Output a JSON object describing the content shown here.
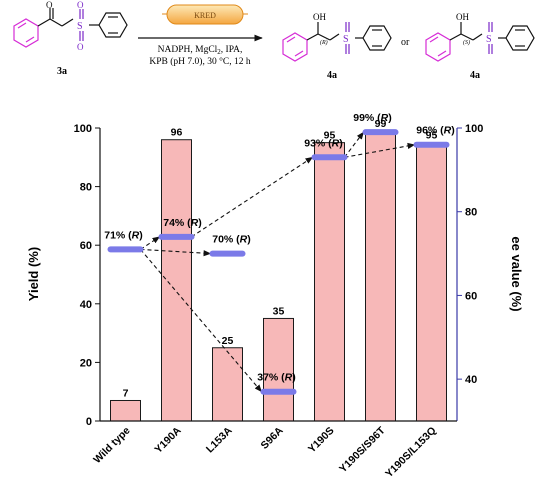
{
  "scheme": {
    "reactant_label": "3a",
    "enzyme_label": "KRED",
    "conditions_line1": "NADPH, MgCl",
    "conditions_sub": "2",
    "conditions_tail": ", IPA,",
    "conditions_line2": "KPB (pH 7.0), 30 °C, 12 h",
    "product_label_1": "4a",
    "product_label_2": "4a",
    "or_text": "or",
    "stereo_R": "(R)",
    "stereo_S": "(S)",
    "oh_text": "OH",
    "o_text": "O",
    "s_text": "S"
  },
  "chart_data": {
    "type": "bar",
    "categories": [
      "Wild type",
      "Y190A",
      "L153A",
      "S96A",
      "Y190S",
      "Y190S/S96T",
      "Y190S/L153Q"
    ],
    "series": [
      {
        "name": "Yield (%)",
        "axis": "left",
        "kind": "bar",
        "values": [
          7,
          96,
          25,
          35,
          95,
          99,
          95
        ]
      },
      {
        "name": "ee value (%)",
        "axis": "right",
        "kind": "marker",
        "values": [
          71,
          74,
          70,
          37,
          93,
          99,
          96
        ],
        "labels": [
          "71% (R)",
          "74% (R)",
          "70% (R)",
          "37% (R)",
          "93% (R)",
          "99% (R)",
          "96% (R)"
        ],
        "present": [
          true,
          true,
          true,
          true,
          true,
          true,
          true
        ]
      }
    ],
    "bar_labels": [
      "7",
      "96",
      "25",
      "35",
      "95",
      "99",
      "95"
    ],
    "xlabel": "",
    "ylabel": "Yield (%)",
    "ylabel_right": "ee value (%)",
    "ylim": [
      0,
      100
    ],
    "ylim_right": [
      30,
      100
    ],
    "yticks": [
      0,
      20,
      40,
      60,
      80,
      100
    ],
    "yticks_right": [
      40,
      60,
      80,
      100
    ],
    "arrows": [
      {
        "from": 0,
        "to": 1
      },
      {
        "from": 0,
        "to": 2
      },
      {
        "from": 0,
        "to": 3
      },
      {
        "from": 1,
        "to": 4
      },
      {
        "from": 4,
        "to": 5
      },
      {
        "from": 4,
        "to": 6
      }
    ],
    "colors": {
      "bar_fill": "#f7b8b8",
      "bar_stroke": "#1a1a1a",
      "marker": "#7b7ae8",
      "right_axis": "#3a3aa8"
    },
    "grid": false
  }
}
